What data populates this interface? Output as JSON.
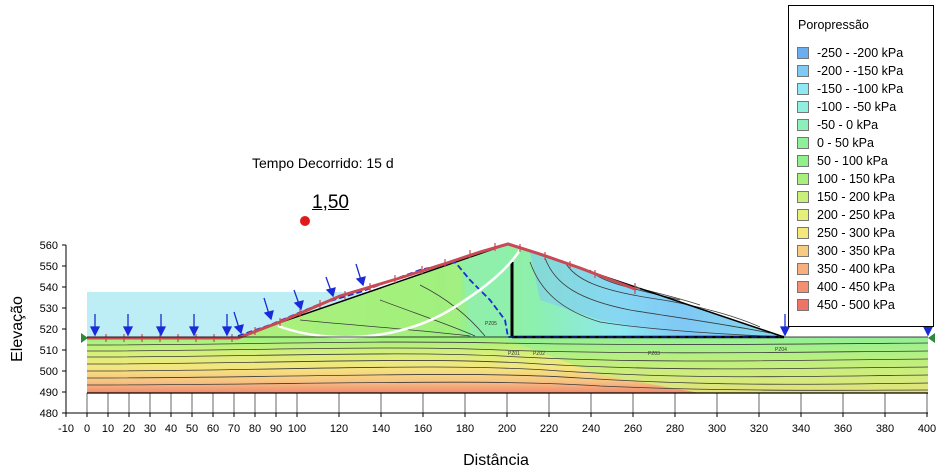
{
  "labels": {
    "elapsed_time": "Tempo Decorrido: 15 d",
    "factor_of_safety": "1,50",
    "x_axis": "Distância",
    "y_axis": "Elevação"
  },
  "legend": {
    "title": "Poropressão",
    "items": [
      {
        "label": "-250 - -200 kPa",
        "color": "#6aaef0"
      },
      {
        "label": "-200 - -150 kPa",
        "color": "#7fc9f5"
      },
      {
        "label": "-150 - -100 kPa",
        "color": "#8ee8f5"
      },
      {
        "label": "-100 - -50 kPa",
        "color": "#8ff0dd"
      },
      {
        "label": "-50 - 0 kPa",
        "color": "#8cf0b8"
      },
      {
        "label": "0 - 50 kPa",
        "color": "#8ef09a"
      },
      {
        "label": "50 - 100 kPa",
        "color": "#90f08a"
      },
      {
        "label": "100 - 150 kPa",
        "color": "#a8f07e"
      },
      {
        "label": "150 - 200 kPa",
        "color": "#c8f07a"
      },
      {
        "label": "200 - 250 kPa",
        "color": "#e4f07a"
      },
      {
        "label": "250 - 300 kPa",
        "color": "#f5e67e"
      },
      {
        "label": "300 - 350 kPa",
        "color": "#f7cc82"
      },
      {
        "label": "350 - 400 kPa",
        "color": "#f5b07c"
      },
      {
        "label": "400 - 450 kPa",
        "color": "#f29070"
      },
      {
        "label": "450 - 500 kPa",
        "color": "#ee7466"
      }
    ]
  },
  "axes": {
    "x_ticks": [
      "-10",
      "0",
      "10",
      "20",
      "30",
      "40",
      "50",
      "60",
      "70",
      "80",
      "90",
      "100",
      "120",
      "140",
      "160",
      "180",
      "200",
      "220",
      "240",
      "260",
      "280",
      "300",
      "320",
      "340",
      "360",
      "380",
      "400"
    ],
    "y_ticks": [
      "480",
      "490",
      "500",
      "510",
      "520",
      "530",
      "540",
      "550",
      "560"
    ]
  },
  "piezometers": [
    "PZ05",
    "PZ01",
    "PZ02",
    "PZ03",
    "PZ04"
  ],
  "colors": {
    "reservoir": "#bdeef5",
    "pore_pressure_line": "#c84a55",
    "seepage_line": "#1a2bd8",
    "slip_surface": "#ffffff",
    "boundary_marker": "#2a8a3a",
    "slip_center": "#e01a1a"
  }
}
